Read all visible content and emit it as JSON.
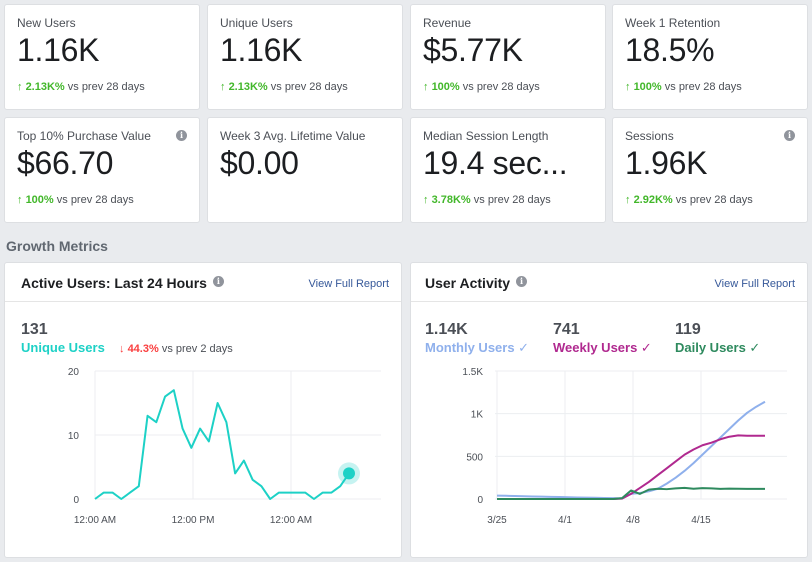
{
  "metrics": [
    {
      "label": "New Users",
      "value": "1.16K",
      "arrow": "↑",
      "pct": "2.13K%",
      "suffix": " vs prev 28 days",
      "info": false
    },
    {
      "label": "Unique Users",
      "value": "1.16K",
      "arrow": "↑",
      "pct": "2.13K%",
      "suffix": " vs prev 28 days",
      "info": false
    },
    {
      "label": "Revenue",
      "value": "$5.77K",
      "arrow": "↑",
      "pct": "100%",
      "suffix": " vs prev 28 days",
      "info": false
    },
    {
      "label": "Week 1 Retention",
      "value": "18.5%",
      "arrow": "↑",
      "pct": "100%",
      "suffix": " vs prev 28 days",
      "info": false
    },
    {
      "label": "Top 10% Purchase Value",
      "value": "$66.70",
      "arrow": "↑",
      "pct": "100%",
      "suffix": " vs prev 28 days",
      "info": true
    },
    {
      "label": "Week 3 Avg. Lifetime Value",
      "value": "$0.00",
      "arrow": "",
      "pct": "",
      "suffix": "",
      "info": false
    },
    {
      "label": "Median Session Length",
      "value": "19.4 sec...",
      "arrow": "↑",
      "pct": "3.78K%",
      "suffix": " vs prev 28 days",
      "info": false
    },
    {
      "label": "Sessions",
      "value": "1.96K",
      "arrow": "↑",
      "pct": "2.92K%",
      "suffix": " vs prev 28 days",
      "info": true
    }
  ],
  "section_title": "Growth Metrics",
  "active_users": {
    "title": "Active Users: Last 24 Hours",
    "link": "View Full Report",
    "count": "131",
    "series_label": "Unique Users",
    "arrow": "↓",
    "pct": "44.3%",
    "suffix": " vs prev 2 days",
    "color": "#1dd1c6"
  },
  "user_activity": {
    "title": "User Activity",
    "link": "View Full Report",
    "monthly": {
      "value": "1.14K",
      "label": "Monthly Users ✓",
      "color": "#8fb0ec"
    },
    "weekly": {
      "value": "741",
      "label": "Weekly Users ✓",
      "color": "#b0298f"
    },
    "daily": {
      "value": "119",
      "label": "Daily Users ✓",
      "color": "#2e8a5e"
    }
  },
  "chart_data": [
    {
      "type": "line",
      "title": "Active Users: Last 24 Hours",
      "x_tick_labels": [
        "12:00 AM",
        "12:00 PM",
        "12:00 AM"
      ],
      "y_ticks": [
        0,
        10,
        20
      ],
      "ylim": [
        0,
        20
      ],
      "series": [
        {
          "name": "Unique Users",
          "color": "#1dd1c6",
          "values": [
            0,
            1,
            1,
            0,
            1,
            2,
            13,
            12,
            16,
            17,
            11,
            8,
            11,
            9,
            15,
            12,
            4,
            6,
            3,
            2,
            0,
            1,
            1,
            1,
            1,
            0,
            1,
            1,
            2,
            4
          ]
        }
      ]
    },
    {
      "type": "line",
      "title": "User Activity",
      "x_tick_labels": [
        "3/25",
        "4/1",
        "4/8",
        "4/15"
      ],
      "y_tick_labels": [
        "0",
        "500",
        "1K",
        "1.5K"
      ],
      "y_ticks": [
        0,
        500,
        1000,
        1500
      ],
      "ylim": [
        0,
        1500
      ],
      "series": [
        {
          "name": "Monthly Users",
          "color": "#8fb0ec",
          "values": [
            40,
            38,
            35,
            32,
            30,
            28,
            25,
            23,
            20,
            18,
            16,
            14,
            12,
            10,
            8,
            60,
            70,
            90,
            120,
            180,
            250,
            330,
            420,
            520,
            620,
            720,
            820,
            920,
            1010,
            1080,
            1140
          ]
        },
        {
          "name": "Weekly Users",
          "color": "#b0298f",
          "values": [
            0,
            0,
            0,
            0,
            0,
            0,
            0,
            0,
            0,
            0,
            0,
            0,
            0,
            0,
            5,
            60,
            130,
            200,
            280,
            360,
            440,
            520,
            580,
            630,
            660,
            700,
            730,
            745,
            741,
            741,
            741
          ]
        },
        {
          "name": "Daily Users",
          "color": "#2e8a5e",
          "values": [
            0,
            0,
            0,
            0,
            0,
            0,
            0,
            0,
            0,
            0,
            0,
            0,
            0,
            0,
            10,
            100,
            60,
            110,
            120,
            115,
            125,
            130,
            120,
            128,
            125,
            118,
            122,
            120,
            119,
            119,
            119
          ]
        }
      ]
    }
  ]
}
